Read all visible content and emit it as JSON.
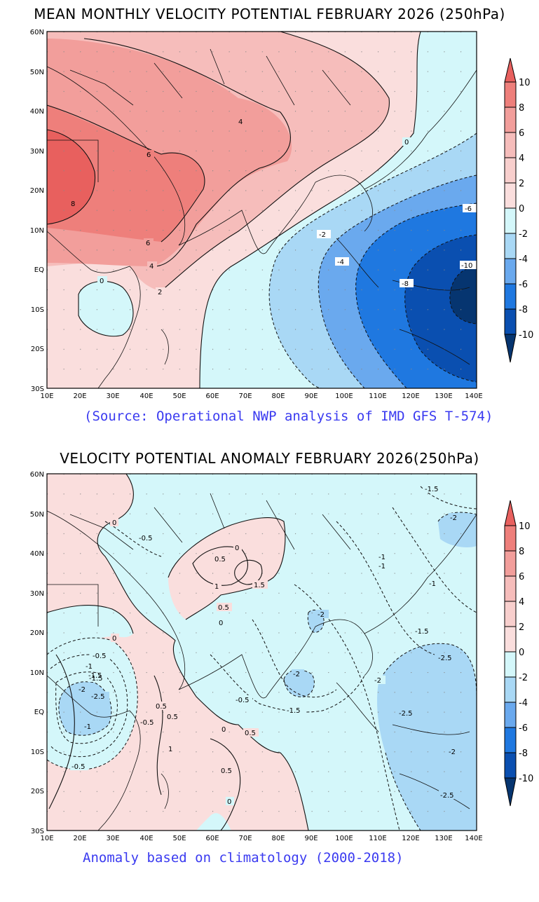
{
  "map1": {
    "title": "MEAN MONTHLY VELOCITY POTENTIAL FEBRUARY 2026 (250hPa)",
    "source": "(Source: Operational NWP analysis of IMD GFS T-574)",
    "lat_labels": [
      "60N",
      "50N",
      "40N",
      "30N",
      "20N",
      "10N",
      "EQ",
      "10S",
      "20S",
      "30S"
    ],
    "lon_labels": [
      "10E",
      "20E",
      "30E",
      "40E",
      "50E",
      "60E",
      "70E",
      "80E",
      "90E",
      "100E",
      "110E",
      "120E",
      "130E",
      "140E"
    ],
    "contour_labels": [
      "4",
      "6",
      "8",
      "6",
      "4",
      "2",
      "0",
      "0",
      "-2",
      "-4",
      "-6",
      "-8",
      "-10"
    ],
    "colorbar_ticks": [
      "10",
      "8",
      "6",
      "4",
      "2",
      "0",
      "-2",
      "-4",
      "-6",
      "-8",
      "-10"
    ]
  },
  "map2": {
    "title": "VELOCITY POTENTIAL ANOMALY FEBRUARY 2026(250hPa)",
    "source": "Anomaly based on climatology (2000-2018)",
    "lat_labels": [
      "60N",
      "50N",
      "40N",
      "30N",
      "20N",
      "10N",
      "EQ",
      "10S",
      "20S",
      "30S"
    ],
    "lon_labels": [
      "10E",
      "20E",
      "30E",
      "40E",
      "50E",
      "60E",
      "70E",
      "80E",
      "90E",
      "100E",
      "110E",
      "120E",
      "130E",
      "140E"
    ],
    "contour_labels": [
      "-1.5",
      "-2",
      "0",
      "-0.5",
      "0",
      "0.5",
      "1",
      "1.5",
      "0.5",
      "0",
      "-1",
      "-1",
      "-1",
      "-0.5",
      "-1",
      "-1.5",
      "-2",
      "-2.5",
      "-2",
      "-1.5",
      "-2",
      "-0.5",
      "-1.5",
      "0.5",
      "0.5",
      "0",
      "0.5",
      "1",
      "0.5",
      "0",
      "-2.5",
      "-2",
      "-2.5",
      "-2",
      "-2.5",
      "-1",
      "-0.5",
      "-0.5",
      "-1.5",
      "0"
    ],
    "colorbar_ticks": [
      "10",
      "8",
      "6",
      "4",
      "2",
      "0",
      "-2",
      "-4",
      "-6",
      "-8",
      "-10"
    ]
  },
  "colors": {
    "c8_10": "#e8605e",
    "c6_8": "#ee7f7b",
    "c4_6": "#f29e9b",
    "c2_4": "#f6bdbb",
    "c0_2": "#fadedd",
    "cm2_0": "#d4f7fa",
    "cm4_m2": "#a9d8f5",
    "cm6_m4": "#6aa9ee",
    "cm8_m6": "#1f78e0",
    "cm10_m8": "#0a4fb0",
    "cmin": "#063570",
    "source_text": "#3a3af0"
  }
}
